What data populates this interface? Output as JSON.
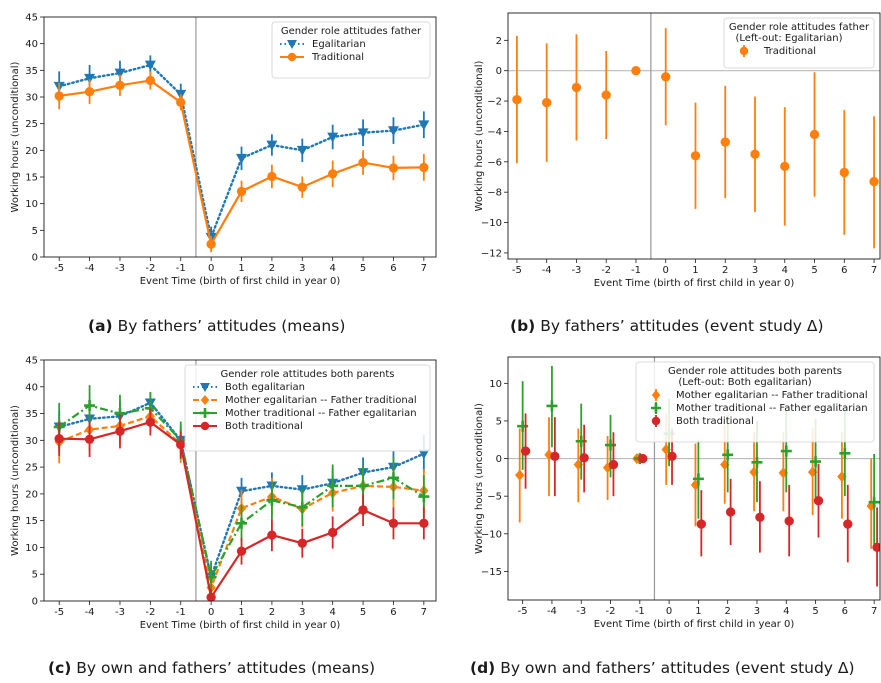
{
  "captions": {
    "a": {
      "tag": "(a)",
      "text": "By fathers’ attitudes (means)"
    },
    "b": {
      "tag": "(b)",
      "text": "By fathers’ attitudes (event study Δ)"
    },
    "c": {
      "tag": "(c)",
      "text": "By own and fathers’ attitudes (means)"
    },
    "d": {
      "tag": "(d)",
      "text": "By own and fathers’ attitudes (event study Δ)"
    }
  },
  "colors": {
    "blue": "#1f77b4",
    "orange": "#ff7f0e",
    "green": "#2ca02c",
    "red": "#d62728",
    "vline": "#999999",
    "hline": "#bbbbbb"
  },
  "chart_data": [
    {
      "id": "a",
      "type": "line",
      "xlabel": "Event Time (birth of first child in year 0)",
      "ylabel": "Working hours (unconditional)",
      "x": [
        -5,
        -4,
        -3,
        -2,
        -1,
        0,
        1,
        2,
        3,
        4,
        5,
        6,
        7
      ],
      "xlim": [
        -5.5,
        7.4
      ],
      "ylim": [
        0,
        45
      ],
      "yticks": [
        0,
        5,
        10,
        15,
        20,
        25,
        30,
        35,
        40,
        45
      ],
      "vline": -0.5,
      "legend": {
        "title": "Gender role attitudes father",
        "position": "top-right"
      },
      "series": [
        {
          "name": "Egalitarian",
          "color": "blue",
          "marker": "triangle-down",
          "line": "dotted",
          "values": [
            32,
            33.5,
            34.5,
            36,
            30.5,
            3.7,
            18.5,
            21,
            20,
            22.5,
            23.3,
            23.7,
            24.8
          ],
          "err": [
            2.8,
            2.5,
            2.3,
            1.8,
            2.0,
            2.0,
            2.2,
            2.0,
            2.2,
            2.3,
            2.5,
            2.5,
            2.5
          ]
        },
        {
          "name": "Traditional",
          "color": "orange",
          "marker": "circle",
          "line": "solid",
          "values": [
            30.2,
            31,
            32.2,
            33.1,
            29,
            2.4,
            12.3,
            15.1,
            13.1,
            15.6,
            17.7,
            16.7,
            16.8
          ],
          "err": [
            2.5,
            2.3,
            2.0,
            1.7,
            1.5,
            1.5,
            2.0,
            2.2,
            2.0,
            2.5,
            2.3,
            2.3,
            2.5
          ]
        }
      ]
    },
    {
      "id": "b",
      "type": "scatter",
      "xlabel": "Event Time (birth of first child in year 0)",
      "ylabel": "Working hours (unconditional)",
      "x": [
        -5,
        -4,
        -3,
        -2,
        -1,
        0,
        1,
        2,
        3,
        4,
        5,
        6,
        7
      ],
      "xlim": [
        -5.3,
        7.2
      ],
      "ylim": [
        -12.4,
        3.8
      ],
      "yticks": [
        -12,
        -10,
        -8,
        -6,
        -4,
        -2,
        0,
        2
      ],
      "vline": -0.5,
      "hline": 0,
      "legend": {
        "title": "Gender role attitudes father",
        "subtitle": "(Left-out: Egalitarian)",
        "position": "top-right"
      },
      "series": [
        {
          "name": "Traditional",
          "color": "orange",
          "marker": "circle",
          "values": [
            -1.9,
            -2.1,
            -1.1,
            -1.6,
            0,
            -0.4,
            -5.6,
            -4.7,
            -5.5,
            -6.3,
            -4.2,
            -6.7,
            -7.3
          ],
          "lo": [
            -6.1,
            -6.0,
            -4.6,
            -4.5,
            0,
            -3.6,
            -9.1,
            -8.4,
            -9.3,
            -10.2,
            -8.3,
            -10.8,
            -11.7
          ],
          "hi": [
            2.3,
            1.8,
            2.4,
            1.3,
            0,
            2.8,
            -2.1,
            -1.0,
            -1.7,
            -2.4,
            -0.1,
            -2.6,
            -3.0
          ]
        }
      ]
    },
    {
      "id": "c",
      "type": "line",
      "xlabel": "Event Time (birth of first child in year 0)",
      "ylabel": "Working hours (unconditional)",
      "x": [
        -5,
        -4,
        -3,
        -2,
        -1,
        0,
        1,
        2,
        3,
        4,
        5,
        6,
        7
      ],
      "xlim": [
        -5.5,
        7.4
      ],
      "ylim": [
        0,
        45
      ],
      "yticks": [
        0,
        5,
        10,
        15,
        20,
        25,
        30,
        35,
        40,
        45
      ],
      "vline": -0.5,
      "legend": {
        "title": "Gender role attitudes both parents",
        "position": "top-right"
      },
      "series": [
        {
          "name": "Both egalitarian",
          "color": "blue",
          "marker": "triangle-down",
          "line": "dotted",
          "values": [
            32.5,
            34,
            34.5,
            37,
            30,
            4.5,
            20.5,
            21.5,
            20.8,
            22,
            24,
            25,
            27.5
          ],
          "err": [
            3.0,
            2.8,
            2.7,
            2.0,
            2.3,
            2.5,
            2.5,
            2.5,
            2.7,
            2.7,
            2.8,
            3.0,
            3.5
          ]
        },
        {
          "name": "Mother egalitarian -- Father traditional",
          "color": "orange",
          "marker": "diamond",
          "line": "dashed",
          "values": [
            29.7,
            32,
            32.7,
            34.5,
            29.3,
            2.5,
            17.3,
            19.5,
            17.2,
            20.2,
            21.5,
            21.3,
            20.6
          ],
          "err": [
            4.0,
            4.0,
            3.5,
            3.0,
            3.5,
            2.5,
            3.5,
            3.5,
            3.5,
            3.5,
            3.8,
            3.8,
            4.0
          ]
        },
        {
          "name": "Mother traditional -- Father egalitarian",
          "color": "green",
          "marker": "plus",
          "line": "dashdot",
          "values": [
            32.5,
            36.5,
            35,
            36,
            30,
            4.5,
            14.5,
            18.8,
            17.5,
            21.5,
            21.5,
            23,
            19.5
          ],
          "err": [
            4.5,
            3.8,
            3.5,
            3.0,
            3.5,
            3.0,
            3.5,
            3.5,
            3.5,
            4.0,
            3.8,
            4.0,
            4.0
          ]
        },
        {
          "name": "Both traditional",
          "color": "red",
          "marker": "circle",
          "line": "solid",
          "values": [
            30.3,
            30.2,
            31.7,
            33.4,
            29.2,
            0.7,
            9.3,
            12.3,
            10.8,
            12.8,
            17.0,
            14.5,
            14.5
          ],
          "err": [
            3.2,
            3.3,
            3.2,
            2.5,
            2.5,
            1.5,
            2.5,
            3.0,
            2.7,
            3.0,
            3.0,
            3.0,
            3.0
          ]
        }
      ]
    },
    {
      "id": "d",
      "type": "scatter",
      "xlabel": "Event Time (birth of first child in year 0)",
      "ylabel": "Working hours (unconditional)",
      "x": [
        -5,
        -4,
        -3,
        -2,
        -1,
        0,
        1,
        2,
        3,
        4,
        5,
        6,
        7
      ],
      "xlim": [
        -5.5,
        7.2
      ],
      "ylim": [
        -18.8,
        13.5
      ],
      "yticks": [
        -15,
        -10,
        -5,
        0,
        5,
        10
      ],
      "vline": -0.5,
      "hline": 0,
      "legend": {
        "title": "Gender role attitudes both parents",
        "subtitle": "(Left-out: Both egalitarian)",
        "position": "top-right"
      },
      "series": [
        {
          "name": "Mother egalitarian -- Father traditional",
          "color": "orange",
          "marker": "diamond",
          "offset": -0.1,
          "values": [
            -2.2,
            0.5,
            -0.8,
            -1.2,
            0,
            1.2,
            -3.5,
            -0.8,
            -1.8,
            -1.9,
            -1.8,
            -2.4,
            -6.3
          ],
          "lo": [
            -8.5,
            -5.0,
            -5.8,
            -5.5,
            0,
            -3.5,
            -9.0,
            -6.0,
            -7.0,
            -7.0,
            -7.5,
            -8.0,
            -12.0
          ],
          "hi": [
            4.0,
            5.5,
            4.0,
            3.0,
            0,
            6.0,
            2.0,
            4.5,
            3.5,
            3.5,
            4.0,
            3.5,
            0.0
          ]
        },
        {
          "name": "Mother traditional -- Father egalitarian",
          "color": "green",
          "marker": "plus",
          "offset": 0,
          "values": [
            4.3,
            7.0,
            2.3,
            1.8,
            0,
            3.3,
            -2.7,
            0.5,
            -0.5,
            1.0,
            -0.4,
            0.7,
            -5.8
          ],
          "lo": [
            -1.5,
            1.5,
            -2.8,
            -2.5,
            0,
            -1.0,
            -8.0,
            -4.5,
            -5.8,
            -4.5,
            -6.0,
            -5.0,
            -12.0
          ],
          "hi": [
            10.3,
            12.3,
            7.3,
            5.8,
            0,
            8.0,
            2.5,
            5.8,
            5.0,
            6.5,
            5.3,
            6.5,
            0.6
          ]
        },
        {
          "name": "Both traditional",
          "color": "red",
          "marker": "circle",
          "offset": 0.1,
          "values": [
            1.0,
            0.3,
            0.1,
            -0.8,
            0,
            0.3,
            -8.7,
            -7.1,
            -7.8,
            -8.3,
            -5.6,
            -8.7,
            -11.8
          ],
          "lo": [
            -4.0,
            -5.0,
            -4.5,
            -5.0,
            0,
            -3.5,
            -13.0,
            -11.5,
            -12.5,
            -13.0,
            -10.5,
            -13.8,
            -17.0
          ],
          "hi": [
            6.0,
            5.5,
            4.5,
            3.5,
            0,
            4.0,
            -4.2,
            -2.7,
            -3.0,
            -3.5,
            -0.7,
            -3.5,
            -6.5
          ]
        }
      ]
    }
  ]
}
